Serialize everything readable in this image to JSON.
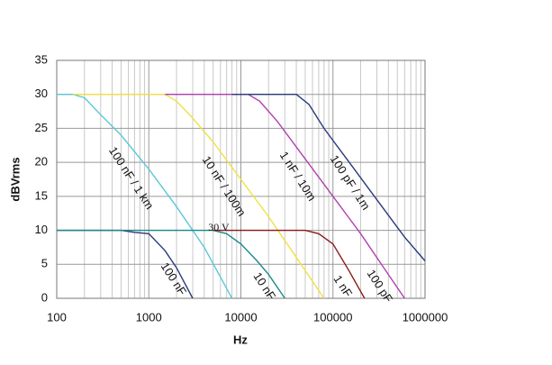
{
  "chart_data": {
    "type": "line",
    "x_scale": "log",
    "xlabel": "Hz",
    "ylabel": "dBVrms",
    "xlim": [
      100,
      1000000
    ],
    "xticks": [
      100,
      1000,
      10000,
      100000,
      1000000
    ],
    "ylim": [
      0,
      35
    ],
    "yticks": [
      0,
      5,
      10,
      15,
      20,
      25,
      30,
      35
    ],
    "grid": true,
    "series": [
      {
        "color": "#5bc8d8",
        "x": [
          100,
          150,
          200,
          300,
          500,
          1000,
          2000,
          4000,
          8000
        ],
        "values": [
          30,
          30,
          29.5,
          27,
          24,
          19,
          13.5,
          7.5,
          0
        ]
      },
      {
        "color": "#f2e040",
        "x": [
          150,
          1500,
          2000,
          3000,
          5000,
          10000,
          20000,
          40000,
          80000
        ],
        "values": [
          30,
          30,
          29,
          26.5,
          23,
          17.5,
          12,
          6,
          0
        ]
      },
      {
        "color": "#b040b0",
        "x": [
          1500,
          12000,
          16000,
          25000,
          50000,
          100000,
          200000,
          400000,
          600000
        ],
        "values": [
          30,
          30,
          29,
          26,
          20.5,
          15,
          9.5,
          3.5,
          0
        ]
      },
      {
        "color": "#2a3a7a",
        "x": [
          8000,
          40000,
          55000,
          80000,
          150000,
          300000,
          600000,
          1000000
        ],
        "values": [
          30,
          30,
          28.5,
          25,
          20,
          14.5,
          9,
          5.5
        ]
      },
      {
        "color": "#2a3a7a",
        "x": [
          100,
          500,
          700,
          1000,
          1500,
          2000,
          3000
        ],
        "values": [
          10,
          10,
          9.7,
          9.5,
          7,
          4.5,
          0
        ]
      },
      {
        "color": "#1a8a8a",
        "x": [
          100,
          5000,
          7000,
          10000,
          15000,
          20000,
          30000
        ],
        "values": [
          10,
          10,
          9.5,
          8,
          5.5,
          3.5,
          0
        ]
      },
      {
        "color": "#8a1a1a",
        "x": [
          5000,
          50000,
          70000,
          100000,
          150000,
          220000
        ],
        "values": [
          10,
          10,
          9.5,
          8,
          4,
          0
        ]
      }
    ],
    "annotations": [
      "100 nF / 1 km",
      "10 nF / 100m",
      "1 nF / 10m",
      "100 pF / 1m",
      "30 V",
      "100 nF",
      "10 nF",
      "1 nF",
      "100 pF"
    ]
  }
}
